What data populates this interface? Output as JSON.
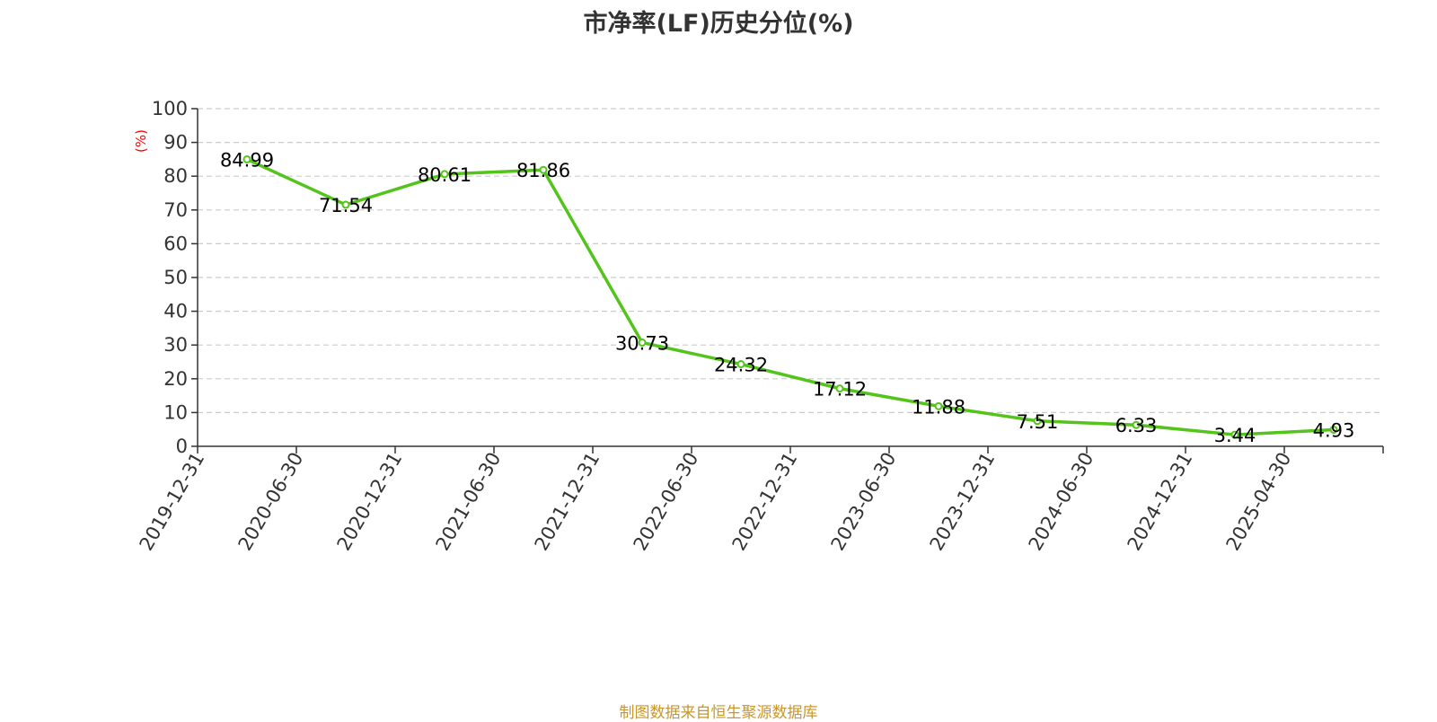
{
  "source_note": "制图数据来自恒生聚源数据库",
  "colors": {
    "line": "#52c41a",
    "marker_fill": "#ffffff",
    "axis": "#333333",
    "grid": "#cccccc",
    "ylabel": "#ff0000",
    "source": "#c8962a",
    "text": "#000000",
    "title": "#333333"
  },
  "chart_data": {
    "type": "line",
    "title": "市净率(LF)历史分位(%)",
    "xlabel": "",
    "ylabel": "(%)",
    "ylim": [
      0,
      100
    ],
    "yticks": [
      0,
      10,
      20,
      30,
      40,
      50,
      60,
      70,
      80,
      90,
      100
    ],
    "grid": true,
    "legend": "none",
    "categories": [
      "2019-12-31",
      "2020-06-30",
      "2020-12-31",
      "2021-06-30",
      "2021-12-31",
      "2022-06-30",
      "2022-12-31",
      "2023-06-30",
      "2023-12-31",
      "2024-06-30",
      "2024-12-31",
      "2025-04-30"
    ],
    "series": [
      {
        "values": [
          84.99,
          71.54,
          80.61,
          81.86,
          30.73,
          24.32,
          17.12,
          11.88,
          7.51,
          6.33,
          3.44,
          4.93
        ],
        "labels": [
          "84.99",
          "71.54",
          "80.61",
          "81.86",
          "30.73",
          "24.32",
          "17.12",
          "11.88",
          "7.51",
          "6.33",
          "3.44",
          "4.93"
        ]
      }
    ]
  }
}
